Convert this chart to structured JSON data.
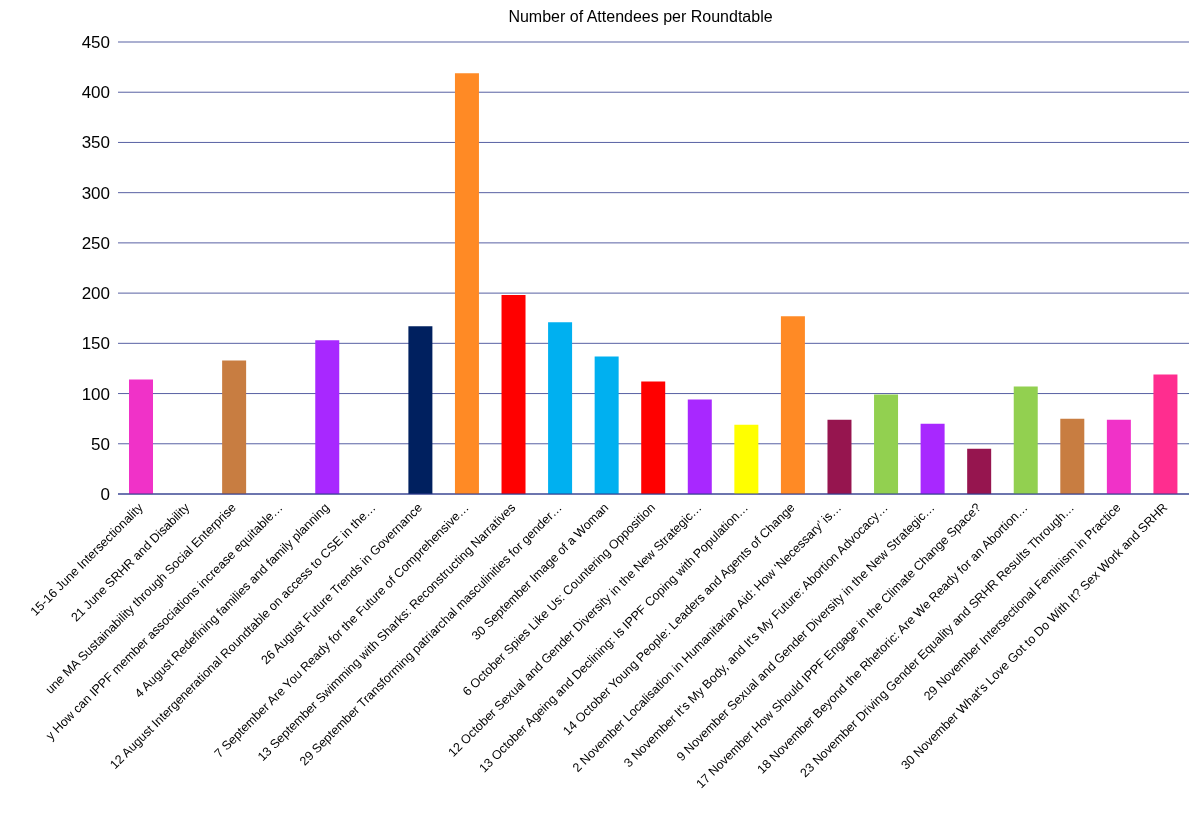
{
  "chart_data": {
    "type": "bar",
    "title": "Number of Attendees per Roundtable",
    "categories": [
      "15-16 June Intersectionality",
      "21 June SRHR and Disability",
      "une MA  Sustainability through Social Enterprise",
      "y How can IPPF member associations increase equitable…",
      "4 August Redefining families and family planning",
      "12 August Intergenerational Roundtable on access to CSE in the…",
      "26 August Future Trends in Governance",
      "7 September Are You Ready for the Future of  Comprehensive…",
      "13 September Swimming with Sharks: Reconstructing Narratives",
      "29 September Transforming patriarchal masculinities for gender…",
      "30 September Image of a Woman",
      "6 October Spies Like Us: Countering Opposition",
      "12 October Sexual and Gender Diversity in the New Strategic…",
      "13 October Ageing and Declining: Is IPPF Coping with Population…",
      "14 October Young People: Leaders and Agents of Change",
      "2 November Localisation in Humanitarian Aid: How ‘Necessary’ is…",
      "3 November It's My Body, and It's My Future: Abortion Advocacy…",
      "9 November Sexual and Gender Diversity in the New Strategic…",
      "17 November How Should IPPF Engage in the Climate Change Space?",
      "18 November Beyond the Rhetoric: Are We Ready for an Abortion…",
      "23 November Driving Gender Equality and SRHR Results Through…",
      "29 November Intersectional Feminism in Practice",
      "30 November What's Love Got to Do With It? Sex Work and SRHR"
    ],
    "values": [
      114,
      null,
      133,
      null,
      153,
      null,
      167,
      419,
      198,
      171,
      137,
      112,
      94,
      69,
      177,
      74,
      99,
      70,
      45,
      107,
      75,
      74,
      119
    ],
    "colors": [
      "#f032c8",
      "#f032c8",
      "#c87d41",
      "#a828ff",
      "#a828ff",
      "#00205f",
      "#00205f",
      "#ff8a25",
      "#ff0000",
      "#00b0f0",
      "#00b0f0",
      "#ff0000",
      "#a828ff",
      "#ffff00",
      "#ff8a25",
      "#96154f",
      "#92d050",
      "#a828ff",
      "#96154f",
      "#92d050",
      "#c87d41",
      "#f032c8",
      "#ff2d8f"
    ],
    "ylim": [
      0,
      450
    ],
    "yticks": [
      0,
      50,
      100,
      150,
      200,
      250,
      300,
      350,
      400,
      450
    ],
    "grid": "y"
  }
}
